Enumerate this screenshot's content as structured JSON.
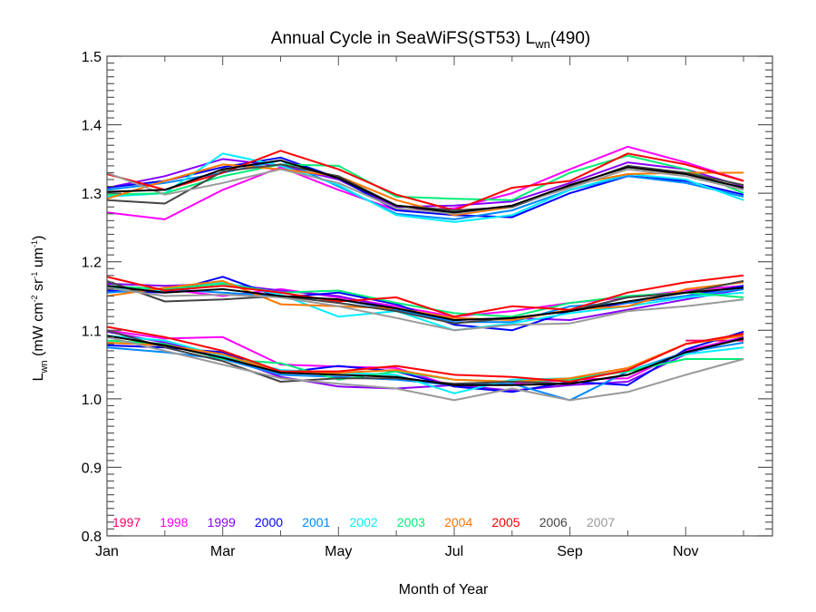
{
  "chart_data": {
    "type": "line",
    "title": "Annual Cycle in SeaWiFS(ST53) L",
    "title_sub": "wn",
    "title_suffix": "(490)",
    "xlabel": "Month of Year",
    "ylabel_main": "L",
    "ylabel_sub": "wn",
    "ylabel_units": " (mW cm",
    "ylabel_units_sup1": "-2",
    "ylabel_units_mid": " sr",
    "ylabel_units_sup2": "-1",
    "ylabel_units_mid2": " um",
    "ylabel_units_sup3": "-1",
    "ylabel_units_end": ")",
    "xlim": [
      1,
      12.5
    ],
    "ylim": [
      0.8,
      1.5
    ],
    "yticks": [
      0.8,
      0.9,
      1.0,
      1.1,
      1.2,
      1.3,
      1.4,
      1.5
    ],
    "ytick_labels": [
      "0.8",
      "0.9",
      "1.0",
      "1.1",
      "1.2",
      "1.3",
      "1.4",
      "1.5"
    ],
    "xticks": [
      1,
      3,
      5,
      7,
      9,
      11
    ],
    "xtick_labels": [
      "Jan",
      "Mar",
      "May",
      "Jul",
      "Sep",
      "Nov"
    ],
    "x": [
      1,
      2,
      3,
      4,
      5,
      6,
      7,
      8,
      9,
      10,
      11,
      12
    ],
    "groups": [
      "upper",
      "middle",
      "lower"
    ],
    "legend_position": "bottom-left inside",
    "series": [
      {
        "name": "1997",
        "color": "#ff0066",
        "upper": [
          null,
          null,
          null,
          null,
          null,
          null,
          null,
          null,
          null,
          null,
          null,
          1.282
        ],
        "middle": [
          null,
          null,
          null,
          null,
          null,
          null,
          null,
          null,
          null,
          null,
          null,
          null
        ],
        "lower": [
          null,
          null,
          null,
          null,
          null,
          null,
          null,
          null,
          null,
          null,
          1.085,
          1.085
        ]
      },
      {
        "name": "1998",
        "color": "#ff00ff",
        "upper": [
          1.272,
          1.262,
          1.305,
          1.338,
          1.305,
          1.275,
          1.278,
          1.3,
          1.335,
          1.368,
          1.345,
          1.318
        ],
        "middle": [
          1.165,
          1.16,
          1.15,
          1.16,
          1.148,
          1.135,
          1.12,
          1.128,
          1.14,
          1.148,
          1.158,
          1.165
        ],
        "lower": [
          1.1,
          1.088,
          1.09,
          1.05,
          1.047,
          1.045,
          1.018,
          1.022,
          1.028,
          1.03,
          1.07,
          1.09
        ]
      },
      {
        "name": "1999",
        "color": "#8800ff",
        "upper": [
          1.308,
          1.325,
          1.35,
          1.34,
          1.32,
          1.28,
          1.282,
          1.288,
          1.315,
          1.345,
          1.335,
          1.31
        ],
        "middle": [
          1.168,
          1.165,
          1.168,
          1.158,
          1.15,
          1.132,
          1.115,
          1.118,
          1.115,
          1.13,
          1.145,
          1.16
        ],
        "lower": [
          1.098,
          1.082,
          1.062,
          1.032,
          1.018,
          1.015,
          1.02,
          1.012,
          1.02,
          1.025,
          1.065,
          1.09
        ]
      },
      {
        "name": "2000",
        "color": "#0000ff",
        "upper": [
          1.308,
          1.318,
          1.338,
          1.352,
          1.322,
          1.275,
          1.268,
          1.265,
          1.3,
          1.325,
          1.318,
          1.298
        ],
        "middle": [
          1.158,
          1.155,
          1.178,
          1.148,
          1.155,
          1.138,
          1.108,
          1.1,
          1.128,
          1.14,
          1.15,
          1.165
        ],
        "lower": [
          1.078,
          1.075,
          1.068,
          1.038,
          1.048,
          1.04,
          1.018,
          1.01,
          1.025,
          1.02,
          1.072,
          1.098
        ]
      },
      {
        "name": "2001",
        "color": "#0088ff",
        "upper": [
          1.305,
          1.315,
          1.33,
          1.348,
          1.31,
          1.27,
          1.262,
          1.275,
          1.305,
          1.325,
          1.315,
          1.295
        ],
        "middle": [
          1.155,
          1.16,
          1.155,
          1.15,
          1.145,
          1.13,
          1.112,
          1.112,
          1.135,
          1.14,
          1.15,
          1.16
        ],
        "lower": [
          1.075,
          1.068,
          1.058,
          1.035,
          1.032,
          1.028,
          1.02,
          1.022,
          0.998,
          1.04,
          1.068,
          1.082
        ]
      },
      {
        "name": "2002",
        "color": "#00eeff",
        "upper": [
          1.295,
          1.3,
          1.358,
          1.34,
          1.312,
          1.268,
          1.258,
          1.268,
          1.305,
          1.328,
          1.32,
          1.29
        ],
        "middle": [
          1.162,
          1.158,
          1.17,
          1.152,
          1.12,
          1.128,
          1.1,
          1.11,
          1.125,
          1.135,
          1.148,
          1.155
        ],
        "lower": [
          1.092,
          1.085,
          1.062,
          1.042,
          1.038,
          1.035,
          1.008,
          1.028,
          1.03,
          1.04,
          1.065,
          1.075
        ]
      },
      {
        "name": "2003",
        "color": "#00ee77",
        "upper": [
          1.298,
          1.3,
          1.325,
          1.342,
          1.34,
          1.295,
          1.292,
          1.29,
          1.33,
          1.355,
          1.335,
          1.3
        ],
        "middle": [
          1.165,
          1.16,
          1.168,
          1.155,
          1.158,
          1.14,
          1.125,
          1.12,
          1.14,
          1.15,
          1.155,
          1.148
        ],
        "lower": [
          1.085,
          1.08,
          1.058,
          1.052,
          1.028,
          1.04,
          1.028,
          1.025,
          1.028,
          1.04,
          1.058,
          1.058
        ]
      },
      {
        "name": "2004",
        "color": "#ff7700",
        "upper": [
          1.292,
          1.318,
          1.342,
          1.335,
          1.325,
          1.29,
          1.268,
          1.28,
          1.312,
          1.328,
          1.33,
          1.33
        ],
        "middle": [
          1.15,
          1.162,
          1.172,
          1.138,
          1.135,
          1.132,
          1.118,
          1.115,
          1.13,
          1.135,
          1.16,
          1.17
        ],
        "lower": [
          1.082,
          1.078,
          1.065,
          1.038,
          1.038,
          1.042,
          1.028,
          1.025,
          1.03,
          1.045,
          1.08,
          1.092
        ]
      },
      {
        "name": "2005",
        "color": "#ff0000",
        "upper": [
          1.328,
          1.305,
          1.33,
          1.362,
          1.335,
          1.298,
          1.275,
          1.308,
          1.318,
          1.358,
          1.342,
          1.318
        ],
        "middle": [
          1.178,
          1.158,
          1.165,
          1.155,
          1.142,
          1.148,
          1.12,
          1.135,
          1.13,
          1.155,
          1.17,
          1.18
        ],
        "lower": [
          1.105,
          1.09,
          1.07,
          1.04,
          1.04,
          1.048,
          1.035,
          1.032,
          1.025,
          1.042,
          1.08,
          1.095
        ]
      },
      {
        "name": "2006",
        "color": "#444444",
        "upper": [
          1.29,
          1.285,
          1.332,
          1.342,
          1.325,
          1.282,
          1.275,
          1.28,
          1.31,
          1.34,
          1.33,
          1.312
        ],
        "middle": [
          1.172,
          1.142,
          1.145,
          1.15,
          1.14,
          1.128,
          1.11,
          1.118,
          1.128,
          1.148,
          1.155,
          1.172
        ],
        "lower": [
          1.1,
          1.075,
          1.055,
          1.025,
          1.03,
          1.03,
          1.022,
          1.025,
          1.022,
          1.035,
          1.068,
          1.088
        ]
      },
      {
        "name": "2007",
        "color": "#999999",
        "upper": [
          1.33,
          1.298,
          1.315,
          1.335,
          1.315,
          1.278,
          1.27,
          1.282,
          1.308,
          1.335,
          1.325,
          1.305
        ],
        "middle": [
          1.162,
          1.15,
          1.152,
          1.148,
          1.135,
          1.118,
          1.1,
          1.108,
          1.11,
          1.128,
          1.135,
          1.145
        ],
        "lower": [
          1.09,
          1.07,
          1.05,
          1.03,
          1.022,
          1.015,
          0.998,
          1.015,
          0.998,
          1.01,
          1.035,
          1.058
        ]
      },
      {
        "name": "mean",
        "color": "#000000",
        "legend": false,
        "upper": [
          1.302,
          1.305,
          1.335,
          1.348,
          1.322,
          1.282,
          1.272,
          1.282,
          1.312,
          1.338,
          1.328,
          1.308
        ],
        "middle": [
          1.165,
          1.155,
          1.16,
          1.15,
          1.145,
          1.132,
          1.115,
          1.118,
          1.128,
          1.142,
          1.155,
          1.162
        ],
        "lower": [
          1.092,
          1.078,
          1.06,
          1.038,
          1.035,
          1.032,
          1.02,
          1.02,
          1.022,
          1.035,
          1.068,
          1.088
        ]
      }
    ],
    "legend": [
      "1997",
      "1998",
      "1999",
      "2000",
      "2001",
      "2002",
      "2003",
      "2004",
      "2005",
      "2006",
      "2007"
    ]
  }
}
